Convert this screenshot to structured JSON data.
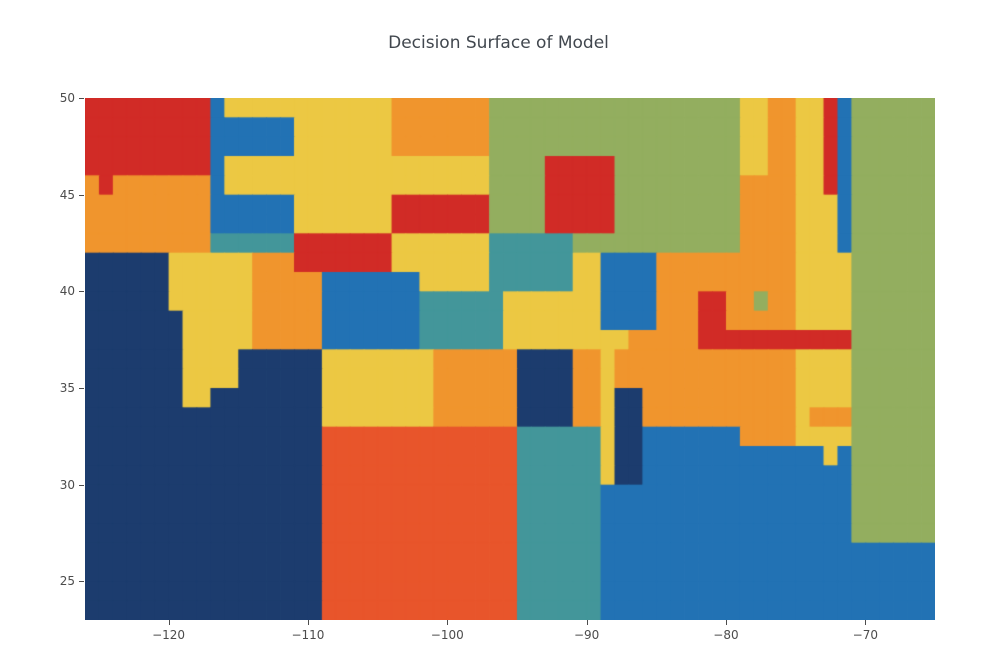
{
  "title": "Decision Surface of Model",
  "chart_data": {
    "type": "heatmap",
    "title": "Decision Surface of Model",
    "description": "Decision-tree style classifier decision surface over a longitude/latitude grid; each colored cell is a predicted class region",
    "xlabel": "",
    "ylabel": "",
    "x_range": [
      -126,
      -65
    ],
    "y_range": [
      23,
      50
    ],
    "x_tick_values": [
      -120,
      -110,
      -100,
      -90,
      -80,
      -70
    ],
    "x_tick_labels": [
      "−120",
      "−110",
      "−100",
      "−90",
      "−80",
      "−70"
    ],
    "y_tick_values": [
      50,
      45,
      40,
      35,
      30,
      25
    ],
    "y_tick_labels": [
      "50",
      "45",
      "40",
      "35",
      "30",
      "25"
    ],
    "grid_lines": false,
    "legend": "none",
    "class_palette": {
      "N": "#1c3c6e",
      "B": "#2272b4",
      "T": "#43969a",
      "G": "#93ae5f",
      "Y": "#ecc843",
      "O": "#f0952d",
      "R": "#e8552b",
      "D": "#d12b26"
    },
    "cell_grid": {
      "cols": 61,
      "rows": 27,
      "x_left": -126,
      "x_right": -65,
      "y_top": 50,
      "y_bottom": 23,
      "rows_top_to_bottom": [
        "DDDDDDDDDBYYYYYYYYYYYYOOOOOOOGGGGGGGGGGGGGGGGGGYYOOYYDBGGGGGG",
        "DDDDDDDDDBBBBBBYYYYYYYOOOOOOOGGGGGGGGGGGGGGGGGGYYOOYYDBGGGGGG",
        "DDDDDDDDDBBBBBBYYYYYYYOOOOOOOGGGGGGGGGGGGGGGGGGYYOOYYDBGGGGGG",
        "DDDDDDDDDBYYYYYYYYYYYYYYYYYYYGGGGDDDDDGGGGGGGGGYYOOYYDBGGGGGG",
        "ODOOOOOOOBYYYYYYYYYYYYYYYYYYYGGGGDDDDDGGGGGGGGGOOOOYYDBGGGGGG",
        "OOOOOOOOOBBBBBBYYYYYYYDDDDDDDGGGGDDDDDGGGGGGGGGOOOOYYYBGGGGGG",
        "OOOOOOOOOBBBBBBYYYYYYYDDDDDDDGGGGDDDDDGGGGGGGGGOOOOYYYBGGGGGG",
        "OOOOOOOOOTTTTTTDDDDDDDYYYYYYYTTTTTTGGGGGGGGGGGGOOOOYYYBGGGGGG",
        "NNNNNNYYYYYYOOODDDDDDDYYYYYYYTTTTTTYYBBBBOOOOOOOOOOYYYYGGGGGG",
        "NNNNNNYYYYYYOOOOOBBBBBBBYYYYYTTTTTTYYBBBBOOOOOOOOOOYYYYGGGGGG",
        "NNNNNNYYYYYYOOOOOBBBBBBBTTTTTTYYYYYYYBBBBOOODDOOGOOYYYYGGGGGG",
        "NNNNNNNYYYYYOOOOOBBBBBBBTTTTTTYYYYYYYBBBBOOODDOOOOOYYYYGGGGGG",
        "NNNNNNNYYYYYOOOOOBBBBBBBTTTTTTYYYYYYYYYOOOOODDDDDDDDDDDGGGGGG",
        "NNNNNNNYYYYNNNNNNYYYYYYYYOOOOOONNNNOOYOOOOOOOOOOOOOYYYYGGGGGG",
        "NNNNNNNYYYYNNNNNNYYYYYYYYOOOOOONNNNOOYOOOOOOOOOOOOOYYYYGGGGGG",
        "NNNNNNNYYNNNNNNNNYYYYYYYYOOOOOONNNNOOYNNOOOOOOOOOOOYYYYGGGGGG",
        "NNNNNNNNNNNNNNNNNYYYYYYYYOOOOOONNNNOOYNNOOOOOOOOOOOYOOOGGGGGG",
        "NNNNNNNNNNNNNNNNNRRRRRRRRRRRRRRTTTTTTYNNBBBBBBBOOOOYYYYGGGGGG",
        "NNNNNNNNNNNNNNNNNRRRRRRRRRRRRRRTTTTTTYNNBBBBBBBBBBBBBYBGGGGGG",
        "NNNNNNNNNNNNNNNNNRRRRRRRRRRRRRRTTTTTTYNNBBBBBBBBBBBBBBBGGGGGG",
        "NNNNNNNNNNNNNNNNNRRRRRRRRRRRRRRTTTTTTBBBBBBBBBBBBBBBBBBGGGGGG",
        "NNNNNNNNNNNNNNNNNRRRRRRRRRRRRRRTTTTTTBBBBBBBBBBBBBBBBBBGGGGGG",
        "NNNNNNNNNNNNNNNNNRRRRRRRRRRRRRRTTTTTTBBBBBBBBBBBBBBBBBBGGGGGG",
        "NNNNNNNNNNNNNNNNNRRRRRRRRRRRRRRTTTTTTBBBBBBBBBBBBBBBBBBBBBBBB",
        "NNNNNNNNNNNNNNNNNRRRRRRRRRRRRRRTTTTTTBBBBBBBBBBBBBBBBBBBBBBBB",
        "NNNNNNNNNNNNNNNNNRRRRRRRRRRRRRRTTTTTTBBBBBBBBBBBBBBBBBBBBBBBB",
        "NNNNNNNNNNNNNNNNNRRRRRRRRRRRRRRTTTTTTBBBBBBBBBBBBBBBBBBBBBBBB"
      ]
    }
  }
}
